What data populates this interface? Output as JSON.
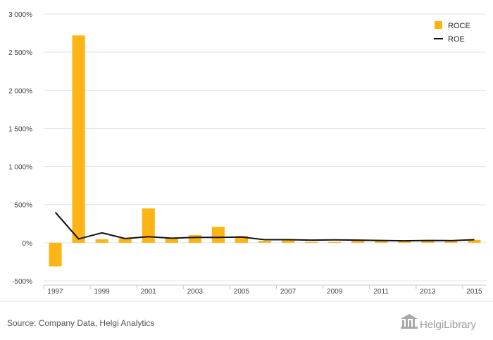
{
  "chart_data": {
    "type": "bar",
    "title": "",
    "xlabel": "",
    "ylabel": "",
    "categories": [
      "1997",
      "1998",
      "1999",
      "2000",
      "2001",
      "2002",
      "2003",
      "2004",
      "2005",
      "2006",
      "2007",
      "2008",
      "2009",
      "2010",
      "2011",
      "2012",
      "2013",
      "2014",
      "2015"
    ],
    "x_tick_labels": [
      "1997",
      "1999",
      "2001",
      "2003",
      "2005",
      "2007",
      "2009",
      "2011",
      "2013",
      "2015"
    ],
    "y_ticks": [
      -500,
      0,
      500,
      1000,
      1500,
      2000,
      2500,
      3000
    ],
    "y_tick_labels": [
      "-500%",
      "0%",
      "500%",
      "1 000%",
      "1 500%",
      "2 000%",
      "2 500%",
      "3 000%"
    ],
    "ylim": [
      -500,
      3000
    ],
    "grid": true,
    "legend_position": "top-right",
    "series": [
      {
        "name": "ROCE",
        "type": "bar",
        "color": "#FDB515",
        "values": [
          -310,
          2720,
          45,
          55,
          450,
          55,
          100,
          210,
          90,
          25,
          30,
          12,
          12,
          30,
          25,
          20,
          25,
          20,
          38
        ]
      },
      {
        "name": "ROE",
        "type": "line",
        "color": "#111111",
        "values": [
          400,
          50,
          130,
          55,
          80,
          60,
          70,
          70,
          75,
          40,
          40,
          35,
          38,
          35,
          30,
          25,
          30,
          28,
          40
        ]
      }
    ]
  },
  "footer": {
    "source": "Source: Company Data, Helgi Analytics",
    "logo_text": "HelgiLibrary"
  }
}
